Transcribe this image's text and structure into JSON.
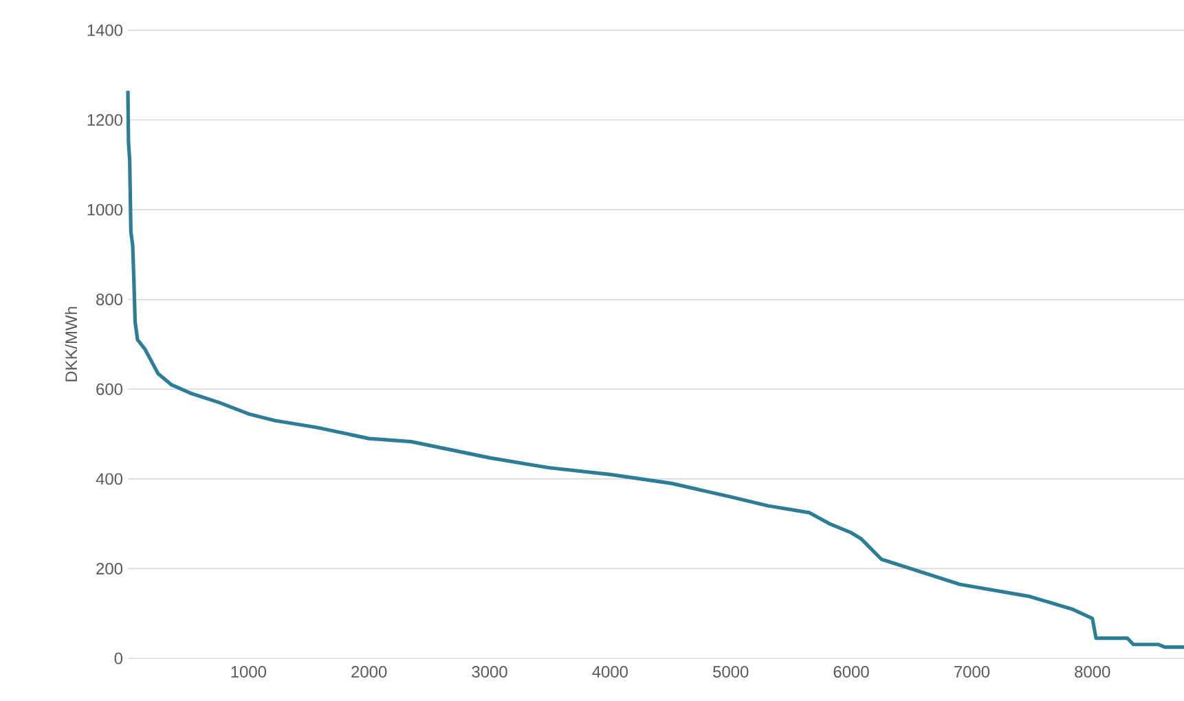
{
  "chart_data": {
    "type": "line",
    "ylabel": "DKK/MWh",
    "x": [
      0,
      5,
      15,
      25,
      40,
      50,
      60,
      80,
      140,
      200,
      250,
      360,
      530,
      760,
      1000,
      1220,
      1560,
      2000,
      2350,
      3000,
      3490,
      4000,
      4510,
      5000,
      5310,
      5650,
      5820,
      6000,
      6080,
      6250,
      6900,
      7480,
      7830,
      8000,
      8030,
      8290,
      8340,
      8550,
      8600,
      8760
    ],
    "series": [
      {
        "color": "#2e7d96",
        "values": [
          1265,
          1150,
          1110,
          950,
          920,
          840,
          750,
          710,
          690,
          660,
          635,
          610,
          590,
          570,
          545,
          530,
          515,
          490,
          483,
          447,
          425,
          410,
          390,
          360,
          340,
          325,
          300,
          280,
          267,
          221,
          165,
          138,
          110,
          89,
          45,
          45,
          31,
          31,
          25,
          25
        ]
      }
    ],
    "xlim": [
      0,
      8760
    ],
    "xticks": [
      1000,
      2000,
      3000,
      4000,
      5000,
      6000,
      7000,
      8000
    ],
    "ylim": [
      0,
      1400
    ],
    "yticks": [
      0,
      200,
      400,
      600,
      800,
      1000,
      1200,
      1400
    ],
    "grid": "y",
    "marker": "none",
    "line_style": "solid"
  }
}
